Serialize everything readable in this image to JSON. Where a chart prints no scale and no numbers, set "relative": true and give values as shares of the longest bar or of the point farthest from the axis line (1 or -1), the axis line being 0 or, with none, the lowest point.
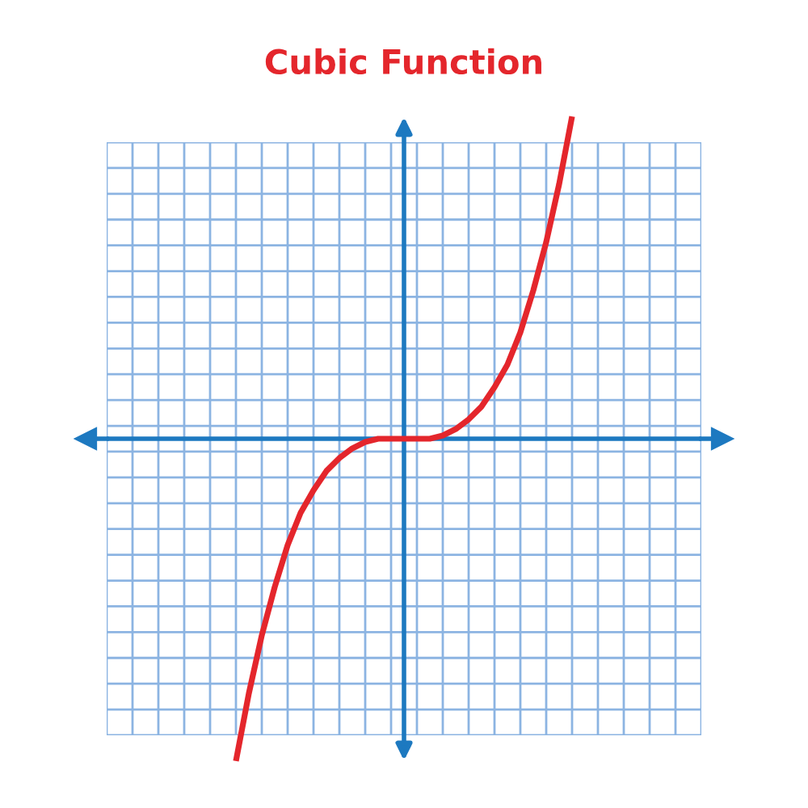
{
  "chart_data": {
    "type": "line",
    "title": "Cubic Function",
    "relative": true,
    "grid": true,
    "marker": "none",
    "ref_lines": [
      {
        "axis": "y",
        "value": 0,
        "color": "#1d79c0"
      }
    ],
    "line_style": "solid",
    "categories": [
      null,
      null,
      null,
      null,
      null,
      null,
      null,
      null,
      null,
      null,
      null,
      null,
      null,
      null,
      null,
      null,
      null,
      null,
      null,
      null,
      null,
      null,
      null,
      null,
      null,
      null,
      null,
      null,
      null,
      null,
      null,
      null,
      null,
      null,
      null,
      null,
      null,
      null,
      null,
      null,
      null,
      null,
      null,
      null,
      null,
      null,
      null
    ],
    "series": [
      {
        "color": "#e4262c",
        "values": [
          null,
          null,
          null,
          null,
          null,
          null,
          null,
          null,
          null,
          null,
          -1,
          -0.79,
          -0.61,
          -0.46,
          -0.33,
          -0.23,
          -0.16,
          -0.1,
          -0.06,
          -0.03,
          -0.01,
          0,
          0,
          0,
          0,
          0,
          0.01,
          0.03,
          0.06,
          0.1,
          0.16,
          0.23,
          0.33,
          0.46,
          0.61,
          0.79,
          1,
          null,
          null,
          null,
          null,
          null,
          null,
          null,
          null,
          null,
          null
        ]
      }
    ]
  }
}
